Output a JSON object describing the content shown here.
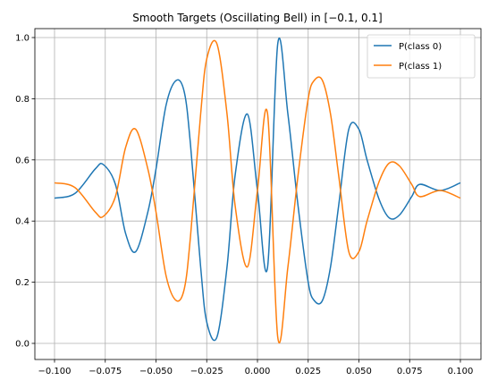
{
  "chart_data": {
    "type": "line",
    "title": "Smooth Targets (Oscillating Bell) in [−0.1, 0.1]",
    "xlabel": "",
    "ylabel": "",
    "xlim": [
      -0.1,
      0.1
    ],
    "ylim": [
      0.0,
      1.0
    ],
    "grid": true,
    "legend_position": "top-right",
    "x_ticks": [
      "−0.100",
      "−0.075",
      "−0.050",
      "−0.025",
      "0.000",
      "0.025",
      "0.050",
      "0.075",
      "0.100"
    ],
    "y_ticks": [
      "0.0",
      "0.2",
      "0.4",
      "0.6",
      "0.8",
      "1.0"
    ],
    "x": [
      -0.1,
      -0.09,
      -0.08,
      -0.076,
      -0.07,
      -0.065,
      -0.06,
      -0.054,
      -0.05,
      -0.045,
      -0.04,
      -0.036,
      -0.033,
      -0.028,
      -0.025,
      -0.02,
      -0.015,
      -0.011,
      -0.005,
      0.0,
      0.005,
      0.01,
      0.015,
      0.02,
      0.025,
      0.028,
      0.032,
      0.036,
      0.04,
      0.045,
      0.05,
      0.054,
      0.06,
      0.065,
      0.07,
      0.076,
      0.08,
      0.09,
      0.1
    ],
    "series": [
      {
        "name": "P(class 0)",
        "color": "#1f77b4",
        "values": [
          0.475,
          0.49,
          0.57,
          0.585,
          0.52,
          0.36,
          0.3,
          0.43,
          0.57,
          0.78,
          0.86,
          0.82,
          0.65,
          0.25,
          0.07,
          0.02,
          0.25,
          0.55,
          0.75,
          0.5,
          0.25,
          0.98,
          0.75,
          0.45,
          0.2,
          0.14,
          0.14,
          0.25,
          0.45,
          0.7,
          0.7,
          0.6,
          0.47,
          0.41,
          0.42,
          0.48,
          0.52,
          0.5,
          0.525
        ]
      },
      {
        "name": "P(class 1)",
        "color": "#ff7f0e",
        "values": [
          0.525,
          0.51,
          0.43,
          0.415,
          0.48,
          0.64,
          0.7,
          0.57,
          0.43,
          0.22,
          0.14,
          0.18,
          0.35,
          0.75,
          0.93,
          0.98,
          0.75,
          0.45,
          0.25,
          0.5,
          0.75,
          0.02,
          0.25,
          0.55,
          0.8,
          0.86,
          0.86,
          0.75,
          0.55,
          0.3,
          0.3,
          0.4,
          0.53,
          0.59,
          0.58,
          0.52,
          0.48,
          0.5,
          0.475
        ]
      }
    ]
  }
}
